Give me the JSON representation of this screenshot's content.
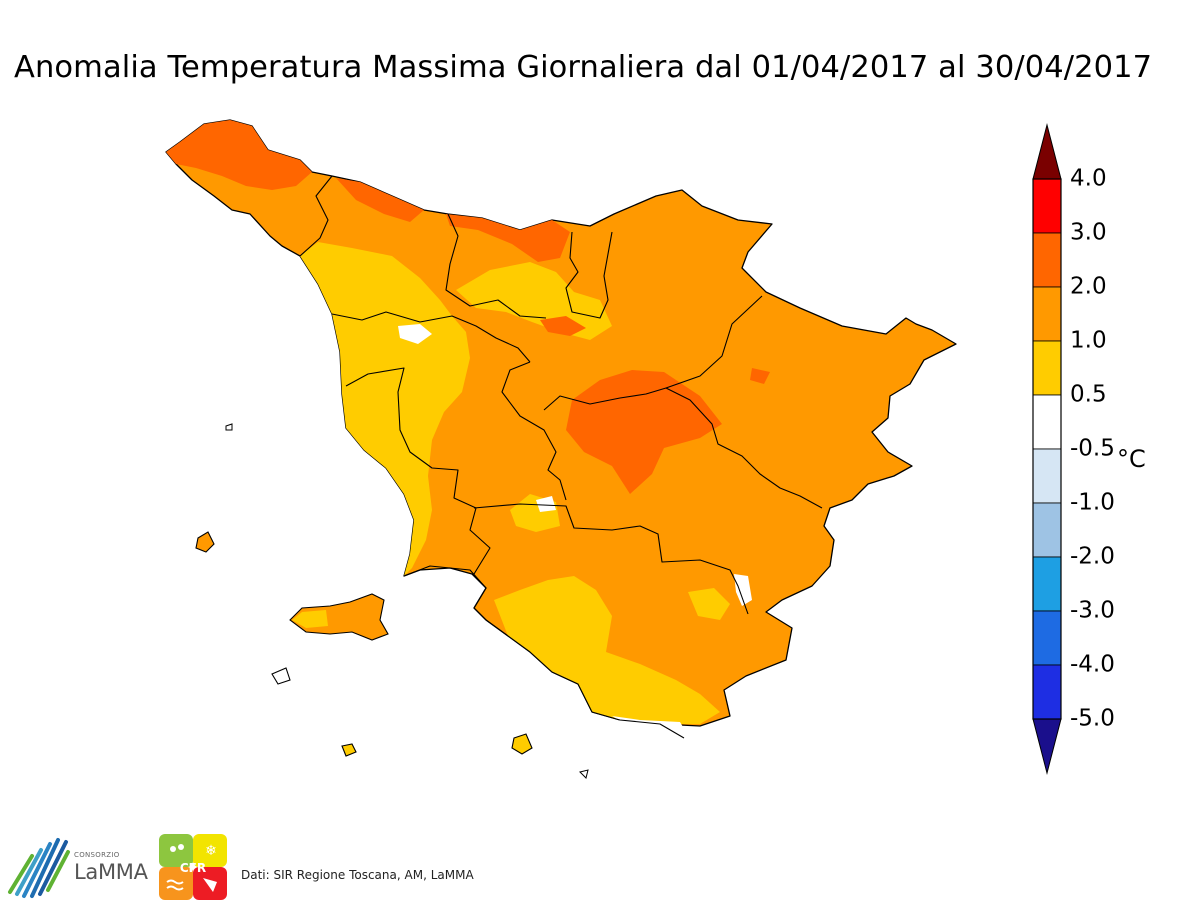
{
  "title": "Anomalia Temperatura Massima Giornaliera dal 01/04/2017 al 30/04/2017",
  "colorbar": {
    "unit": "°C",
    "ticks": [
      "4.0",
      "3.0",
      "2.0",
      "1.0",
      "0.5",
      "-0.5",
      "-1.0",
      "-2.0",
      "-3.0",
      "-4.0",
      "-5.0"
    ],
    "bins": [
      {
        "range": "> 4.0",
        "color": "#7a0000"
      },
      {
        "range": "3.0 – 4.0",
        "color": "#ff0000"
      },
      {
        "range": "2.0 – 3.0",
        "color": "#ff6600"
      },
      {
        "range": "1.0 – 2.0",
        "color": "#ff9900"
      },
      {
        "range": "0.5 – 1.0",
        "color": "#ffcc00"
      },
      {
        "range": "-0.5 – 0.5",
        "color": "#ffffff"
      },
      {
        "range": "-1.0 – -0.5",
        "color": "#d6e6f4"
      },
      {
        "range": "-2.0 – -1.0",
        "color": "#9ec3e4"
      },
      {
        "range": "-3.0 – -2.0",
        "color": "#1e9fe3"
      },
      {
        "range": "-4.0 – -3.0",
        "color": "#1e6be3"
      },
      {
        "range": "-5.0 – -4.0",
        "color": "#1e2ee3"
      },
      {
        "range": "< -5.0",
        "color": "#1a0f8c"
      }
    ]
  },
  "logos": {
    "lamma_small": "CONSORZIO",
    "lamma_name": "LaMMA",
    "cfr": "CFR"
  },
  "credit": "Dati: SIR Regione Toscana, AM, LaMMA"
}
